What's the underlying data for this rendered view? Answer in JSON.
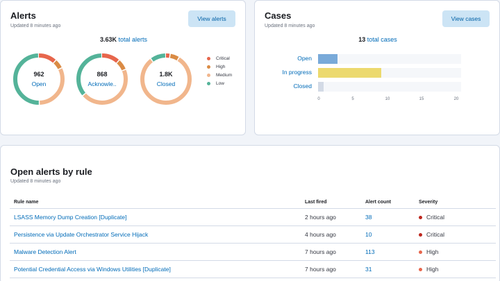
{
  "alerts_panel": {
    "title": "Alerts",
    "updated": "Updated 8 minutes ago",
    "view_button": "View alerts",
    "total_value": "3.63K",
    "total_label": "total alerts",
    "donuts": [
      {
        "count": "962",
        "label": "Open",
        "segments": [
          0.12,
          0.06,
          0.32,
          0.5
        ]
      },
      {
        "count": "868",
        "label": "Acknowle..",
        "segments": [
          0.12,
          0.07,
          0.45,
          0.36
        ]
      },
      {
        "count": "1.8K",
        "label": "Closed",
        "segments": [
          0.03,
          0.06,
          0.81,
          0.1
        ]
      }
    ],
    "legend": [
      {
        "label": "Critical",
        "color": "#e7664c"
      },
      {
        "label": "High",
        "color": "#da8b45"
      },
      {
        "label": "Medium",
        "color": "#f1b68c"
      },
      {
        "label": "Low",
        "color": "#54b399"
      }
    ]
  },
  "cases_panel": {
    "title": "Cases",
    "updated": "Updated 8 minutes ago",
    "view_button": "View cases",
    "total_value": "13",
    "total_label": "total cases",
    "max": 20,
    "ticks": [
      "0",
      "5",
      "10",
      "15",
      "20"
    ],
    "rows": [
      {
        "label": "Open",
        "value": 2.7,
        "color": "#79aad9"
      },
      {
        "label": "In progress",
        "value": 8.8,
        "color": "#ecd96e"
      },
      {
        "label": "Closed",
        "value": 0.8,
        "color": "#d3dae6"
      }
    ]
  },
  "rules_panel": {
    "title": "Open alerts by rule",
    "updated": "Updated 8 minutes ago",
    "columns": [
      "Rule name",
      "Last fired",
      "Alert count",
      "Severity"
    ],
    "rows": [
      {
        "rule": "LSASS Memory Dump Creation [Duplicate]",
        "last_fired": "2 hours ago",
        "count": "38",
        "severity": "Critical",
        "sev_color": "#bd271e"
      },
      {
        "rule": "Persistence via Update Orchestrator Service Hijack",
        "last_fired": "4 hours ago",
        "count": "10",
        "severity": "Critical",
        "sev_color": "#bd271e"
      },
      {
        "rule": "Malware Detection Alert",
        "last_fired": "7 hours ago",
        "count": "113",
        "severity": "High",
        "sev_color": "#e7664c"
      },
      {
        "rule": "Potential Credential Access via Windows Utilities [Duplicate]",
        "last_fired": "7 hours ago",
        "count": "31",
        "severity": "High",
        "sev_color": "#e7664c"
      }
    ]
  }
}
